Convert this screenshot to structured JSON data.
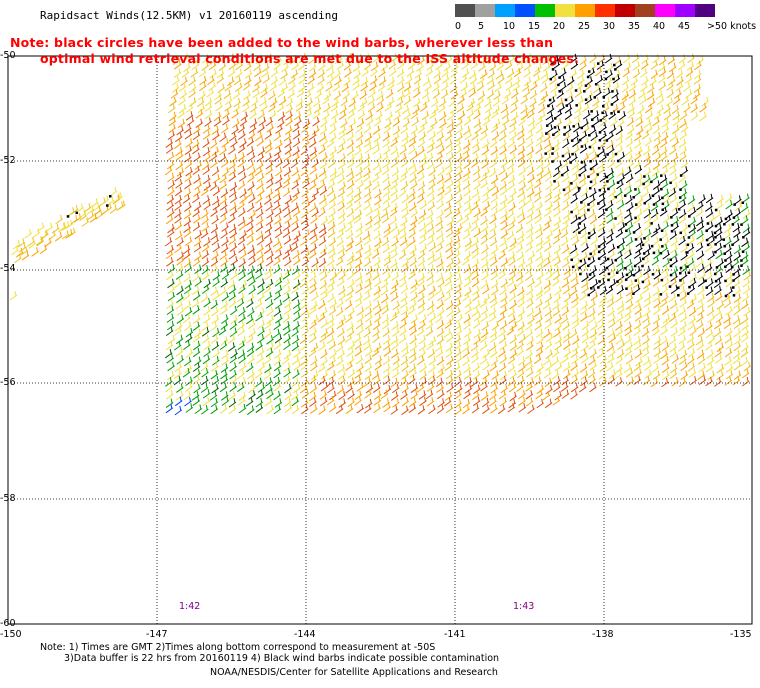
{
  "title": "Rapidsact Winds(12.5KM) v1 20160119 ascending",
  "note": {
    "line1": "Note: black circles have been added to the wind barbs, wherever less than",
    "line2": "optimal wind retrieval conditions are met due to the ISS altitude changes."
  },
  "legend": {
    "unit": ">50 knots",
    "labels": [
      "0",
      "5",
      "10",
      "15",
      "20",
      "25",
      "30",
      "35",
      "40",
      "45"
    ],
    "colors": [
      "#505050",
      "#a0a0a0",
      "#00a0ff",
      "#0050ff",
      "#00c000",
      "#f0e040",
      "#ffa000",
      "#ff3000",
      "#c00000",
      "#a04020",
      "#ff00ff",
      "#a000ff",
      "#500080"
    ]
  },
  "map": {
    "lat_labels": [
      "-50",
      "-52",
      "-54",
      "-56",
      "-58",
      "-60"
    ],
    "lon_labels": [
      "-150",
      "-147",
      "-144",
      "-141",
      "-138",
      "-135"
    ],
    "lat_range": [
      -60,
      -50
    ],
    "lon_range": [
      -150,
      -135
    ],
    "grid": true,
    "pass_times": [
      "1:42",
      "1:43"
    ]
  },
  "footnotes": {
    "line1": "Note: 1) Times are GMT 2)Times along bottom correspond to measurement at -50S",
    "line2": "3)Data buffer is 22 hrs from 20160119 4) Black wind barbs indicate possible contamination"
  },
  "credit": "NOAA/NESDIS/Center for Satellite Applications and Research"
}
